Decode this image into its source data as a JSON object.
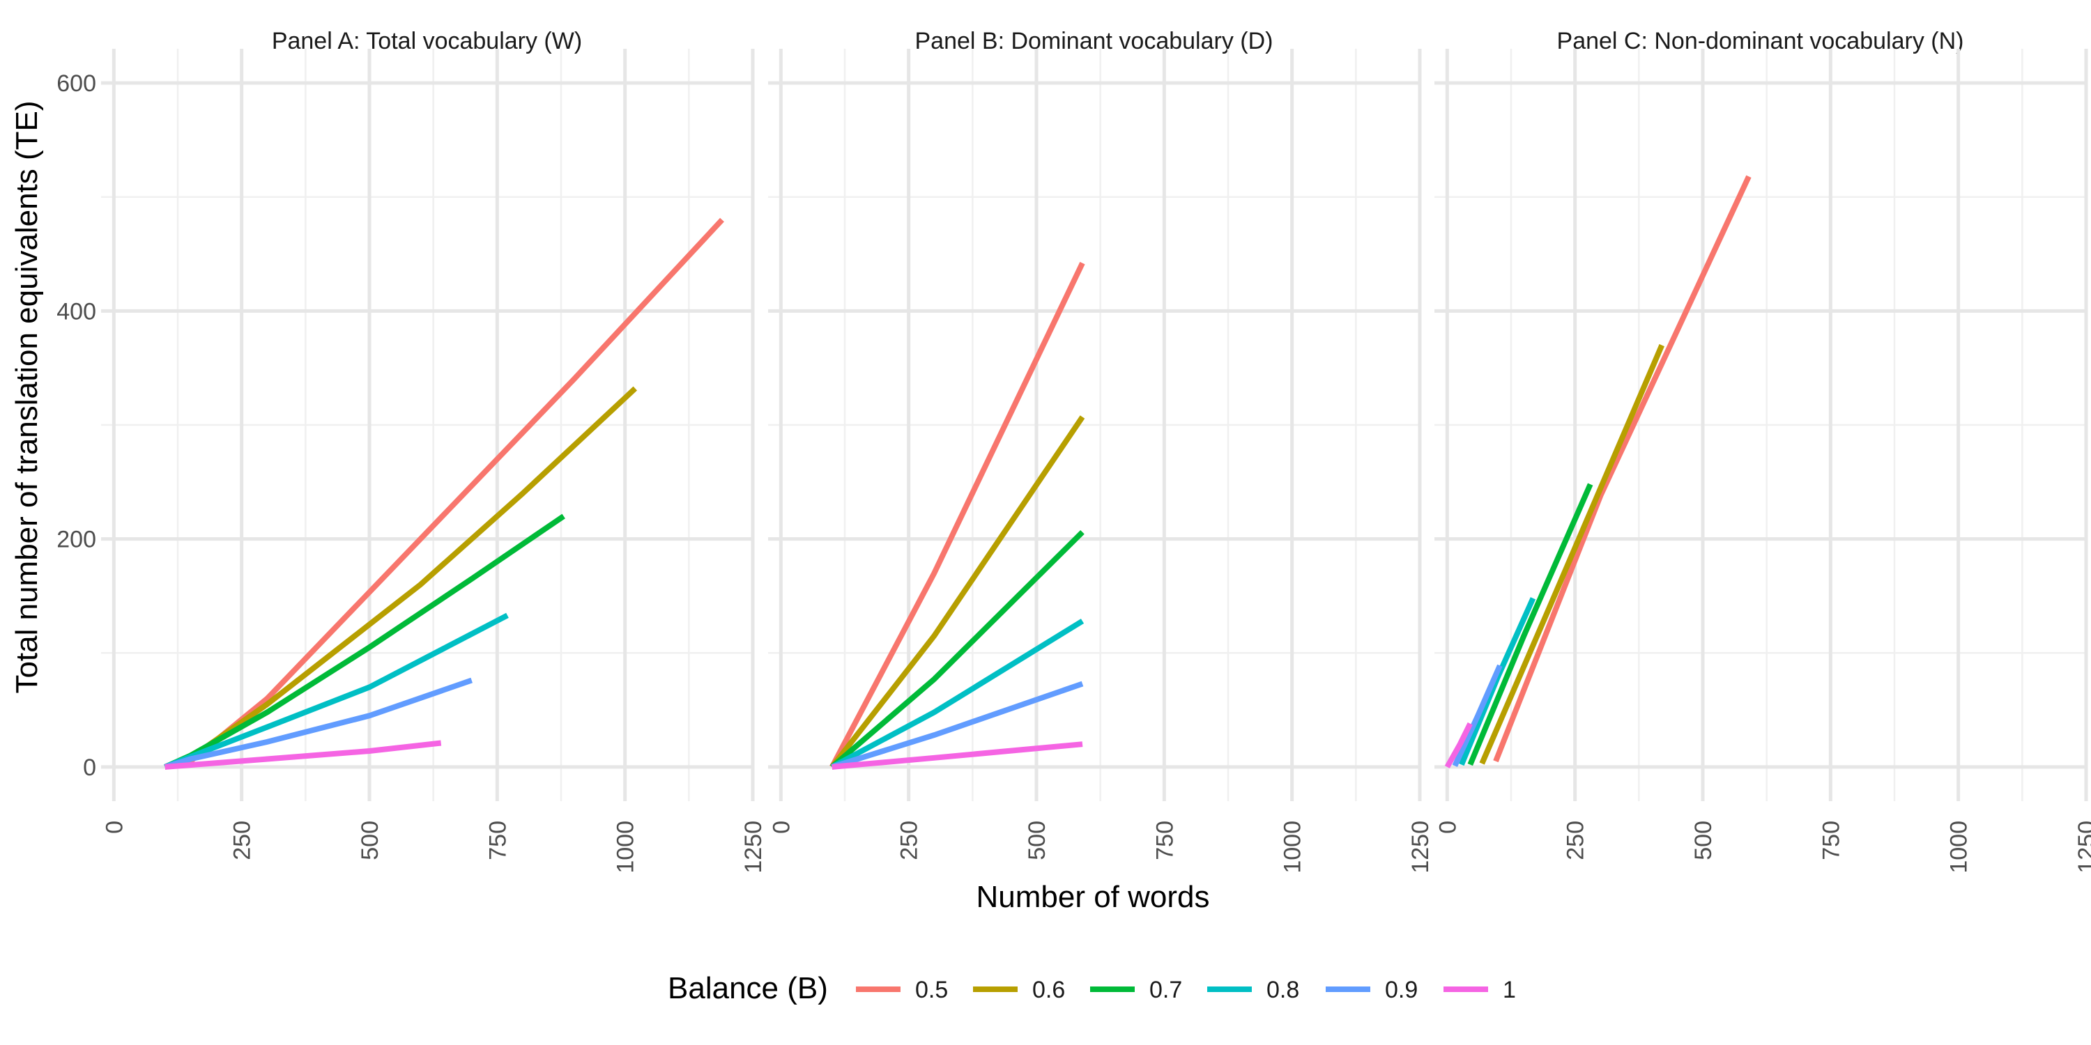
{
  "chart_data": {
    "type": "line",
    "xlabel": "Number of words",
    "ylabel": "Total number of translation equivalents (TE)",
    "xlim": [
      -25,
      1250
    ],
    "ylim": [
      -30,
      630
    ],
    "x_ticks": [
      0,
      250,
      500,
      750,
      1000,
      1250
    ],
    "y_ticks": [
      0,
      200,
      400,
      600
    ],
    "grid": true,
    "legend": {
      "title": "Balance (B)",
      "position": "bottom",
      "entries": [
        {
          "label": "0.5",
          "color": "#F8766D"
        },
        {
          "label": "0.6",
          "color": "#B79F00"
        },
        {
          "label": "0.7",
          "color": "#00BA38"
        },
        {
          "label": "0.8",
          "color": "#00BFC4"
        },
        {
          "label": "0.9",
          "color": "#619CFF"
        },
        {
          "label": "1",
          "color": "#F564E3"
        }
      ]
    },
    "panels": [
      {
        "title": "Panel A: Total vocabulary (W)",
        "series": [
          {
            "name": "0.5",
            "color": "#F8766D",
            "x": [
              100,
              150,
              300,
              600,
              900,
              1190
            ],
            "y": [
              0,
              5,
              60,
              200,
              340,
              480
            ]
          },
          {
            "name": "0.6",
            "color": "#B79F00",
            "x": [
              100,
              150,
              300,
              600,
              800,
              1020
            ],
            "y": [
              0,
              8,
              55,
              160,
              240,
              332
            ]
          },
          {
            "name": "0.7",
            "color": "#00BA38",
            "x": [
              100,
              150,
              300,
              500,
              700,
              880
            ],
            "y": [
              0,
              10,
              48,
              105,
              165,
              220
            ]
          },
          {
            "name": "0.8",
            "color": "#00BFC4",
            "x": [
              100,
              150,
              300,
              500,
              650,
              770
            ],
            "y": [
              0,
              9,
              35,
              70,
              105,
              133
            ]
          },
          {
            "name": "0.9",
            "color": "#619CFF",
            "x": [
              100,
              150,
              300,
              500,
              700
            ],
            "y": [
              0,
              7,
              22,
              45,
              76
            ]
          },
          {
            "name": "1",
            "color": "#F564E3",
            "x": [
              100,
              300,
              500,
              640
            ],
            "y": [
              0,
              7,
              14,
              21
            ]
          }
        ]
      },
      {
        "title": "Panel B: Dominant vocabulary (D)",
        "series": [
          {
            "name": "0.5",
            "color": "#F8766D",
            "x": [
              100,
              300,
              590
            ],
            "y": [
              0,
              170,
              442
            ]
          },
          {
            "name": "0.6",
            "color": "#B79F00",
            "x": [
              100,
              300,
              590
            ],
            "y": [
              0,
              115,
              307
            ]
          },
          {
            "name": "0.7",
            "color": "#00BA38",
            "x": [
              100,
              300,
              590
            ],
            "y": [
              0,
              77,
              206
            ]
          },
          {
            "name": "0.8",
            "color": "#00BFC4",
            "x": [
              100,
              300,
              590
            ],
            "y": [
              0,
              48,
              128
            ]
          },
          {
            "name": "0.9",
            "color": "#619CFF",
            "x": [
              100,
              300,
              590
            ],
            "y": [
              0,
              28,
              73
            ]
          },
          {
            "name": "1",
            "color": "#F564E3",
            "x": [
              100,
              300,
              590
            ],
            "y": [
              0,
              8,
              20
            ]
          }
        ]
      },
      {
        "title": "Panel C: Non-dominant vocabulary (N)",
        "series": [
          {
            "name": "0.5",
            "color": "#F8766D",
            "x": [
              95,
              300,
              590
            ],
            "y": [
              5,
              238,
              518
            ]
          },
          {
            "name": "0.6",
            "color": "#B79F00",
            "x": [
              68,
              200,
              420
            ],
            "y": [
              3,
              140,
              370
            ]
          },
          {
            "name": "0.7",
            "color": "#00BA38",
            "x": [
              45,
              150,
              280
            ],
            "y": [
              2,
              115,
              248
            ]
          },
          {
            "name": "0.8",
            "color": "#00BFC4",
            "x": [
              28,
              100,
              168
            ],
            "y": [
              2,
              80,
              148
            ]
          },
          {
            "name": "0.9",
            "color": "#619CFF",
            "x": [
              15,
              60,
              103
            ],
            "y": [
              1,
              45,
              89
            ]
          },
          {
            "name": "1",
            "color": "#F564E3",
            "x": [
              0,
              25,
              45
            ],
            "y": [
              0,
              20,
              38
            ]
          }
        ]
      }
    ]
  }
}
